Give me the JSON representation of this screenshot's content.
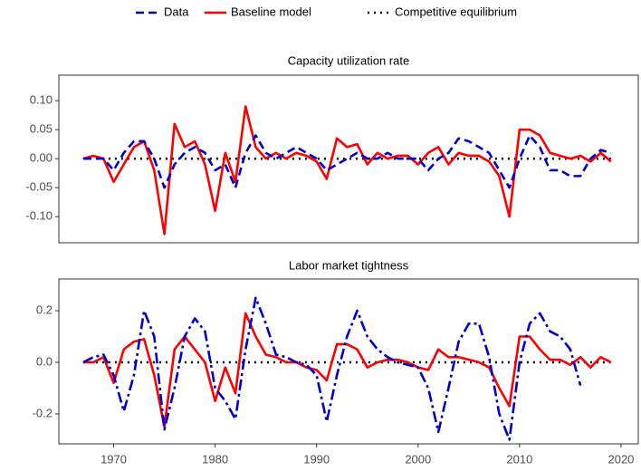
{
  "chart_data": [
    {
      "type": "line",
      "title": "Capacity utilization rate",
      "x": [
        1967,
        1968,
        1969,
        1970,
        1971,
        1972,
        1973,
        1974,
        1975,
        1976,
        1977,
        1978,
        1979,
        1980,
        1981,
        1982,
        1983,
        1984,
        1985,
        1986,
        1987,
        1988,
        1989,
        1990,
        1991,
        1992,
        1993,
        1994,
        1995,
        1996,
        1997,
        1998,
        1999,
        2000,
        2001,
        2002,
        2003,
        2004,
        2005,
        2006,
        2007,
        2008,
        2009,
        2010,
        2011,
        2012,
        2013,
        2014,
        2015,
        2016,
        2017,
        2018,
        2019
      ],
      "series": [
        {
          "name": "Data",
          "color": "#0000cc",
          "linestyle": "dashed",
          "values": [
            0,
            0,
            0,
            -0.02,
            0.01,
            0.03,
            0.03,
            0,
            -0.05,
            -0.01,
            0.01,
            0.02,
            0.01,
            -0.02,
            -0.01,
            -0.05,
            0.01,
            0.04,
            0.01,
            0,
            0.01,
            0.02,
            0.01,
            0,
            -0.02,
            -0.01,
            0,
            0.01,
            0,
            0,
            0.01,
            0,
            0,
            0,
            -0.02,
            0,
            0.01,
            0.035,
            0.03,
            0.02,
            0.01,
            -0.02,
            -0.05,
            0,
            0.04,
            0.02,
            -0.02,
            -0.02,
            -0.03,
            -0.03,
            0,
            0.015,
            0.01
          ]
        },
        {
          "name": "Baseline model",
          "color": "#ff0000",
          "linestyle": "solid",
          "values": [
            0,
            0.005,
            0,
            -0.04,
            -0.01,
            0.02,
            0.03,
            -0.02,
            -0.13,
            0.06,
            0.02,
            0.03,
            -0.01,
            -0.09,
            0.01,
            -0.04,
            0.09,
            0.02,
            0,
            0.01,
            0,
            0.01,
            0.005,
            -0.005,
            -0.035,
            0.035,
            0.02,
            0.025,
            -0.01,
            0.01,
            0,
            0.005,
            0.005,
            -0.01,
            0.01,
            0.02,
            -0.01,
            0.01,
            0.005,
            0.005,
            -0.005,
            -0.03,
            -0.1,
            0.05,
            0.05,
            0.04,
            0.01,
            0.005,
            0,
            0.005,
            -0.005,
            0.01,
            -0.005
          ]
        },
        {
          "name": "Competitive equilibrium",
          "color": "#000000",
          "linestyle": "dotted",
          "values": [
            0,
            0,
            0,
            0,
            0,
            0,
            0,
            0,
            0,
            0,
            0,
            0,
            0,
            0,
            0,
            0,
            0,
            0,
            0,
            0,
            0,
            0,
            0,
            0,
            0,
            0,
            0,
            0,
            0,
            0,
            0,
            0,
            0,
            0,
            0,
            0,
            0,
            0,
            0,
            0,
            0,
            0,
            0,
            0,
            0,
            0,
            0,
            0,
            0,
            0,
            0,
            0,
            0
          ]
        }
      ],
      "xlim": [
        1964.6,
        2021.7
      ],
      "ylim": [
        -0.145,
        0.144
      ],
      "yticks": [
        {
          "value": -0.1,
          "label": "-0.10"
        },
        {
          "value": -0.05,
          "label": "-0.05"
        },
        {
          "value": 0,
          "label": "0.00"
        },
        {
          "value": 0.05,
          "label": "0.05"
        },
        {
          "value": 0.1,
          "label": "0.10"
        }
      ],
      "legend": "top"
    },
    {
      "type": "line",
      "title": "Labor market tightness",
      "x": [
        1967,
        1968,
        1969,
        1970,
        1971,
        1972,
        1973,
        1974,
        1975,
        1976,
        1977,
        1978,
        1979,
        1980,
        1981,
        1982,
        1983,
        1984,
        1985,
        1986,
        1987,
        1988,
        1989,
        1990,
        1991,
        1992,
        1993,
        1994,
        1995,
        1996,
        1997,
        1998,
        1999,
        2000,
        2001,
        2002,
        2003,
        2004,
        2005,
        2006,
        2007,
        2008,
        2009,
        2010,
        2011,
        2012,
        2013,
        2014,
        2015,
        2016,
        2017,
        2018,
        2019
      ],
      "series": [
        {
          "color": "#0000cc",
          "linestyle": "dashdot",
          "values": [
            0,
            0.02,
            0.03,
            -0.05,
            -0.19,
            -0.05,
            0.2,
            0.1,
            -0.26,
            -0.1,
            0.1,
            0.17,
            0.12,
            -0.1,
            -0.15,
            -0.22,
            0.05,
            0.25,
            0.15,
            0.03,
            0.02,
            0,
            -0.01,
            -0.05,
            -0.23,
            -0.05,
            0.1,
            0.2,
            0.1,
            0.05,
            0.02,
            0,
            -0.01,
            -0.02,
            -0.1,
            -0.27,
            -0.1,
            0.08,
            0.15,
            0.15,
            0.02,
            -0.2,
            -0.3,
            0,
            0.15,
            0.19,
            0.12,
            0.1,
            0.05,
            -0.09,
            null,
            null,
            null
          ]
        },
        {
          "color": "#ff0000",
          "linestyle": "solid",
          "values": [
            0,
            0,
            0.02,
            -0.08,
            0.05,
            0.08,
            0.09,
            -0.05,
            -0.25,
            0.05,
            0.1,
            0.05,
            0,
            -0.15,
            -0.02,
            -0.12,
            0.19,
            0.1,
            0.03,
            0.02,
            0,
            0,
            -0.02,
            -0.03,
            -0.07,
            0.07,
            0.07,
            0.05,
            -0.02,
            0,
            0.01,
            0.01,
            0,
            -0.02,
            -0.03,
            0.05,
            0.02,
            0.02,
            0.01,
            0,
            -0.02,
            -0.1,
            -0.17,
            0.1,
            0.1,
            0.05,
            0.01,
            0.01,
            -0.01,
            0.02,
            -0.02,
            0.02,
            0
          ]
        },
        {
          "color": "#000000",
          "linestyle": "dotted",
          "values": [
            0,
            0,
            0,
            0,
            0,
            0,
            0,
            0,
            0,
            0,
            0,
            0,
            0,
            0,
            0,
            0,
            0,
            0,
            0,
            0,
            0,
            0,
            0,
            0,
            0,
            0,
            0,
            0,
            0,
            0,
            0,
            0,
            0,
            0,
            0,
            0,
            0,
            0,
            0,
            0,
            0,
            0,
            0,
            0,
            0,
            0,
            0,
            0,
            0,
            0,
            0,
            0,
            0
          ]
        }
      ],
      "xlim": [
        1964.6,
        2021.7
      ],
      "ylim": [
        -0.316,
        0.323
      ],
      "yticks": [
        -0.2,
        {
          "value": 0,
          "label": "0.0"
        },
        0.2
      ],
      "xticks": [
        1970,
        1980,
        1990,
        2000,
        2010,
        2020
      ]
    }
  ]
}
